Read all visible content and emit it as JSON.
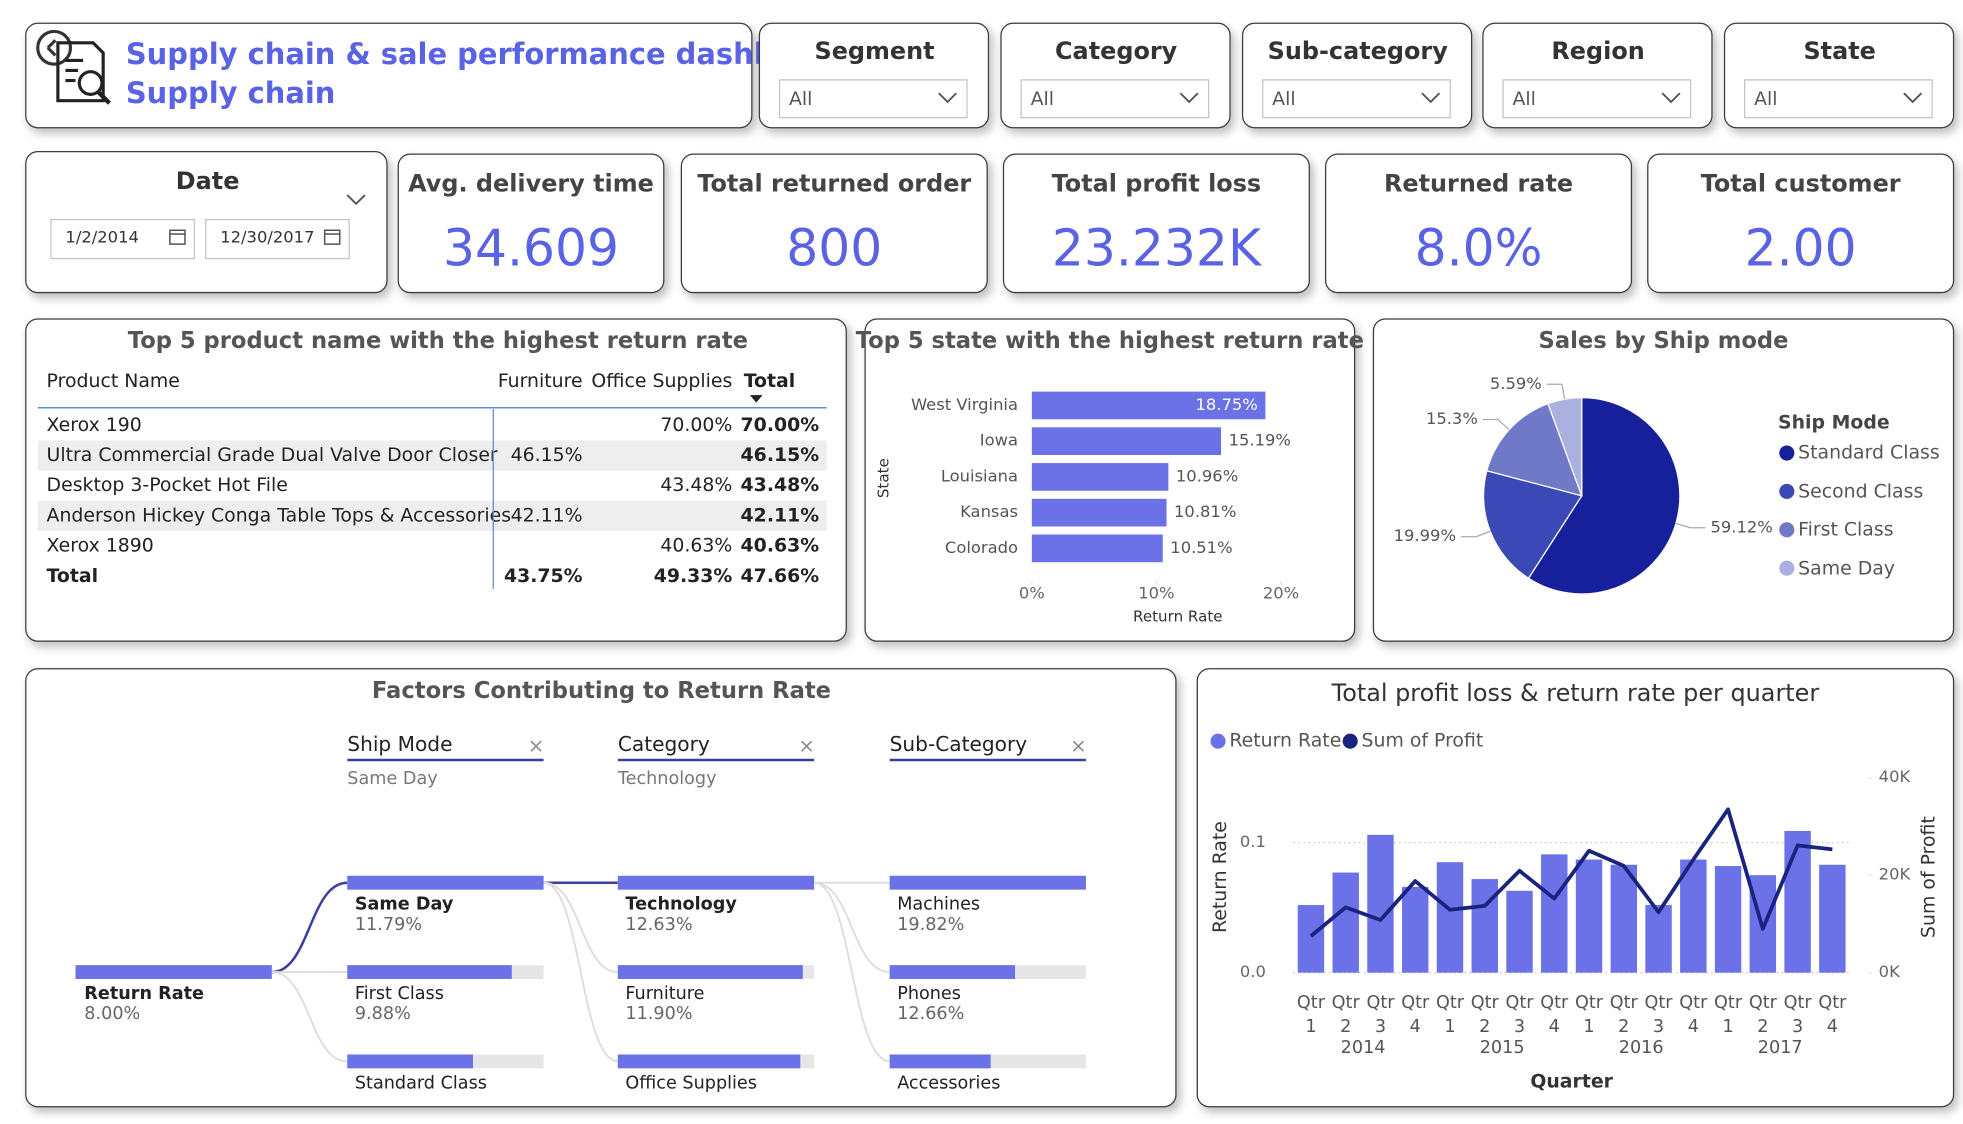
{
  "header": {
    "title": "Supply chain & sale performance dashboard",
    "subtitle": "Supply chain"
  },
  "filters": [
    {
      "label": "Segment",
      "value": "All"
    },
    {
      "label": "Category",
      "value": "All"
    },
    {
      "label": "Sub-category",
      "value": "All"
    },
    {
      "label": "Region",
      "value": "All"
    },
    {
      "label": "State",
      "value": "All"
    }
  ],
  "date_filter": {
    "label": "Date",
    "start": "1/2/2014",
    "end": "12/30/2017"
  },
  "kpis": [
    {
      "title": "Avg. delivery time",
      "value": "34.609"
    },
    {
      "title": "Total returned order",
      "value": "800"
    },
    {
      "title": "Total profit loss",
      "value": "23.232K"
    },
    {
      "title": "Returned rate",
      "value": "8.0%"
    },
    {
      "title": "Total customer",
      "value": "2.00"
    }
  ],
  "table": {
    "title": "Top 5 product name with the highest return rate",
    "columns": [
      "Product Name",
      "Furniture",
      "Office Supplies",
      "Total"
    ],
    "rows": [
      [
        "Xerox 190",
        null,
        "70.00%",
        "70.00%"
      ],
      [
        "Ultra Commercial Grade Dual Valve Door Closer",
        "46.15%",
        null,
        "46.15%"
      ],
      [
        "Desktop 3-Pocket Hot File",
        null,
        "43.48%",
        "43.48%"
      ],
      [
        "Anderson Hickey Conga Table Tops & Accessories",
        "42.11%",
        null,
        "42.11%"
      ],
      [
        "Xerox 1890",
        null,
        "40.63%",
        "40.63%"
      ]
    ],
    "total": [
      "Total",
      "43.75%",
      "49.33%",
      "47.66%"
    ]
  },
  "chart_data": [
    {
      "type": "hbar",
      "title": "Top 5 state with the highest return rate",
      "categories": [
        "West Virginia",
        "Iowa",
        "Louisiana",
        "Kansas",
        "Colorado"
      ],
      "values": [
        18.75,
        15.19,
        10.96,
        10.81,
        10.51
      ],
      "value_labels": [
        "18.75%",
        "15.19%",
        "10.96%",
        "10.81%",
        "10.51%"
      ],
      "color": "#6b72e8",
      "xlim": [
        0,
        20
      ],
      "xticks": [
        {
          "value": 0,
          "label": "0%"
        },
        {
          "value": 10,
          "label": "10%"
        },
        {
          "value": 20,
          "label": "20%"
        }
      ],
      "xlabel": "Return Rate",
      "ylabel": "State"
    },
    {
      "type": "pie",
      "title": "Sales by Ship mode",
      "legend_title": "Ship Mode",
      "categories": [
        "Standard Class",
        "Second Class",
        "First Class",
        "Same Day"
      ],
      "values": [
        59.12,
        19.99,
        15.3,
        5.59
      ],
      "value_labels": [
        "59.12%",
        "19.99%",
        "15.3%",
        "5.59%"
      ],
      "colors": [
        "#15209a",
        "#3a49b5",
        "#7078c8",
        "#aab0e0"
      ]
    },
    {
      "type": "decomposition",
      "title": "Factors Contributing to Return Rate",
      "root": {
        "name": "Return Rate",
        "value": 8,
        "value_label": "8.00%"
      },
      "color": "#6b72e8",
      "levels": [
        {
          "field": "Ship Mode",
          "selected": "Same Day",
          "nodes": [
            "Same Day",
            "First Class",
            "Standard Class"
          ],
          "values": [
            11.79,
            9.88,
            7.55
          ],
          "value_labels": [
            "11.79%",
            "9.88%",
            null
          ]
        },
        {
          "field": "Category",
          "selected": "Technology",
          "nodes": [
            "Technology",
            "Furniture",
            "Office Supplies"
          ],
          "values": [
            12.63,
            11.9,
            11.74
          ],
          "value_labels": [
            "12.63%",
            "11.90%",
            null
          ]
        },
        {
          "field": "Sub-Category",
          "selected": null,
          "nodes": [
            "Machines",
            "Phones",
            "Accessories"
          ],
          "values": [
            19.82,
            12.66,
            10.2
          ],
          "value_labels": [
            "19.82%",
            "12.66%",
            null
          ]
        }
      ]
    },
    {
      "type": "combo",
      "title": "Total profit loss & return rate per quarter",
      "categories": [
        "Qtr 1",
        "Qtr 2",
        "Qtr 3",
        "Qtr 4",
        "Qtr 1",
        "Qtr 2",
        "Qtr 3",
        "Qtr 4",
        "Qtr 1",
        "Qtr 2",
        "Qtr 3",
        "Qtr 4",
        "Qtr 1",
        "Qtr 2",
        "Qtr 3",
        "Qtr 4"
      ],
      "x_groups": [
        "2014",
        "2015",
        "2016",
        "2017"
      ],
      "series": [
        {
          "name": "Return Rate",
          "type": "bar",
          "color": "#6b72e8",
          "values": [
            0.052,
            0.077,
            0.106,
            0.066,
            0.085,
            0.072,
            0.063,
            0.091,
            0.087,
            0.083,
            0.052,
            0.087,
            0.082,
            0.075,
            0.109,
            0.083
          ]
        },
        {
          "name": "Sum of Profit",
          "type": "line",
          "axis": "y2",
          "color": "#1a237e",
          "values": [
            7500,
            13400,
            10800,
            18800,
            12900,
            13700,
            20900,
            15200,
            25000,
            21900,
            12400,
            23200,
            33500,
            9000,
            26100,
            25300
          ]
        }
      ],
      "ylim": [
        0,
        0.15
      ],
      "yticks": [
        {
          "value": 0,
          "label": "0.0"
        },
        0.1
      ],
      "y2lim": [
        0,
        40000
      ],
      "y2ticks": [
        {
          "value": 0,
          "label": "0K"
        },
        {
          "value": 20000,
          "label": "20K"
        },
        {
          "value": 40000,
          "label": "40K"
        }
      ],
      "xlabel": "Quarter",
      "ylabel": "Return Rate",
      "y2label": "Sum of Profit",
      "grid": true
    }
  ]
}
